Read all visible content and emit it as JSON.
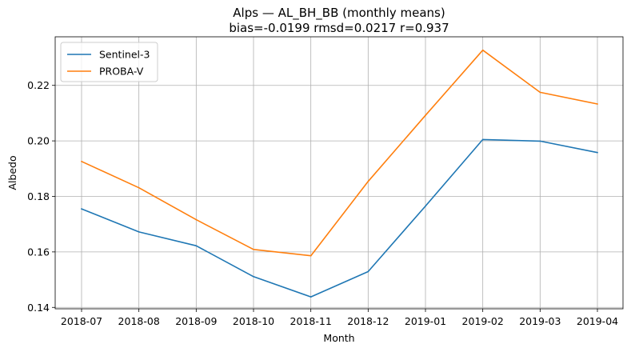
{
  "chart_data": {
    "type": "line",
    "title": "Alps — AL_BH_BB (monthly means)",
    "subtitle": "bias=-0.0199  rmsd=0.0217  r=0.937",
    "xlabel": "Month",
    "ylabel": "Albedo",
    "categories": [
      "2018-07",
      "2018-08",
      "2018-09",
      "2018-10",
      "2018-11",
      "2018-12",
      "2019-01",
      "2019-02",
      "2019-03",
      "2019-04"
    ],
    "yticks": [
      "0.14",
      "0.16",
      "0.18",
      "0.20",
      "0.22"
    ],
    "ylim": [
      0.1395,
      0.2375
    ],
    "grid": true,
    "legend_position": "top-left",
    "series": [
      {
        "name": "Sentinel-3",
        "color": "#1f77b4",
        "values": [
          0.1755,
          0.1672,
          0.1622,
          0.1511,
          0.1438,
          0.1529,
          0.1765,
          0.2005,
          0.1999,
          0.1958
        ]
      },
      {
        "name": "PROBA-V",
        "color": "#ff7f0e",
        "values": [
          0.1926,
          0.1831,
          0.1716,
          0.1609,
          0.1586,
          0.1854,
          0.2092,
          0.2327,
          0.2175,
          0.2133
        ]
      }
    ]
  }
}
